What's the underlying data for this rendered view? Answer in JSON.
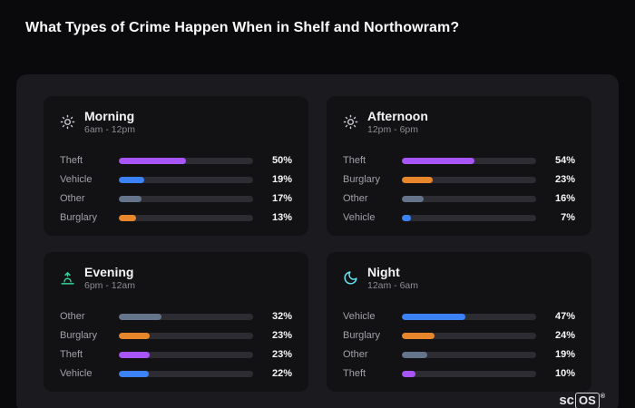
{
  "page": {
    "title": "What Types of Crime Happen When in Shelf and Northowram?"
  },
  "colors": {
    "Theft": "#a855f7",
    "Vehicle": "#3b82f6",
    "Other": "#64748b",
    "Burglary": "#e8862b",
    "track": "#2c2c32",
    "panel": "#1b1b1f",
    "card": "#121215",
    "background": "#0a0a0c"
  },
  "chart_data": [
    {
      "type": "bar",
      "orientation": "horizontal",
      "title": "Morning",
      "subtitle": "6am - 12pm",
      "icon": "sun-icon",
      "categories": [
        "Theft",
        "Vehicle",
        "Other",
        "Burglary"
      ],
      "values": [
        50,
        19,
        17,
        13
      ],
      "value_labels": [
        "50%",
        "19%",
        "17%",
        "13%"
      ],
      "unit": "percent",
      "xlim": [
        0,
        100
      ]
    },
    {
      "type": "bar",
      "orientation": "horizontal",
      "title": "Afternoon",
      "subtitle": "12pm - 6pm",
      "icon": "sun-icon",
      "categories": [
        "Theft",
        "Burglary",
        "Other",
        "Vehicle"
      ],
      "values": [
        54,
        23,
        16,
        7
      ],
      "value_labels": [
        "54%",
        "23%",
        "16%",
        "7%"
      ],
      "unit": "percent",
      "xlim": [
        0,
        100
      ]
    },
    {
      "type": "bar",
      "orientation": "horizontal",
      "title": "Evening",
      "subtitle": "6pm - 12am",
      "icon": "sunset-icon",
      "categories": [
        "Other",
        "Burglary",
        "Theft",
        "Vehicle"
      ],
      "values": [
        32,
        23,
        23,
        22
      ],
      "value_labels": [
        "32%",
        "23%",
        "23%",
        "22%"
      ],
      "unit": "percent",
      "xlim": [
        0,
        100
      ]
    },
    {
      "type": "bar",
      "orientation": "horizontal",
      "title": "Night",
      "subtitle": "12am - 6am",
      "icon": "moon-icon",
      "categories": [
        "Vehicle",
        "Burglary",
        "Other",
        "Theft"
      ],
      "values": [
        47,
        24,
        19,
        10
      ],
      "value_labels": [
        "47%",
        "24%",
        "19%",
        "10%"
      ],
      "unit": "percent",
      "xlim": [
        0,
        100
      ]
    }
  ],
  "logo": {
    "sc": "sc",
    "os": "OS",
    "reg": "®"
  }
}
